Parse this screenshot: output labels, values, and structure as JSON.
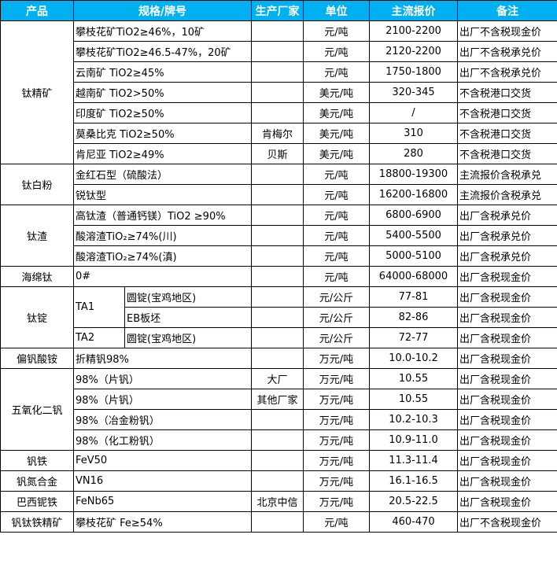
{
  "header": {
    "product": "产品",
    "spec": "规格/牌号",
    "maker": "生产厂家",
    "unit": "单位",
    "price": "主流报价",
    "note": "备注"
  },
  "colors": {
    "header_bg": "#00b0f0",
    "header_text": "#ffffff"
  },
  "groups": [
    {
      "product": "钛精矿",
      "rows": [
        {
          "spec": "攀枝花矿TiO2≥46%，10矿",
          "maker": "",
          "unit": "元/吨",
          "price": "2100-2200",
          "note": "出厂不含税现金价"
        },
        {
          "spec": "攀枝花矿TiO2≥46.5-47%，20矿",
          "maker": "",
          "unit": "元/吨",
          "price": "2120-2200",
          "note": "出厂不含税承兑价"
        },
        {
          "spec": "云南矿 TiO2≥45%",
          "maker": "",
          "unit": "元/吨",
          "price": "1750-1800",
          "note": "出厂不含税承兑价"
        },
        {
          "spec": "越南矿 TiO2>50%",
          "maker": "",
          "unit": "美元/吨",
          "price": "320-345",
          "note": "不含税港口交货"
        },
        {
          "spec": "印度矿 TiO2≥50%",
          "maker": "",
          "unit": "美元/吨",
          "price": "/",
          "note": "不含税港口交货"
        },
        {
          "spec": "莫桑比克 TiO2≥50%",
          "maker": "肯梅尔",
          "unit": "美元/吨",
          "price": "310",
          "note": "不含税港口交货"
        },
        {
          "spec": "肯尼亚 TiO2≥49%",
          "maker": "贝斯",
          "unit": "美元/吨",
          "price": "280",
          "note": "不含税港口交货"
        }
      ]
    },
    {
      "product": "钛白粉",
      "rows": [
        {
          "spec": "金红石型（硫酸法）",
          "maker": "",
          "unit": "元/吨",
          "price": "18800-19300",
          "note": "主流报价含税承兑"
        },
        {
          "spec": "锐钛型",
          "maker": "",
          "unit": "元/吨",
          "price": "16200-16800",
          "note": "主流报价含税承兑"
        }
      ]
    },
    {
      "product": "钛渣",
      "rows": [
        {
          "spec": "高钛渣（普通钙镁）TiO2 ≥90%",
          "maker": "",
          "unit": "元/吨",
          "price": "6800-6900",
          "note": "出厂含税承兑价"
        },
        {
          "spec": "酸溶渣TiO₂≥74%(川)",
          "maker": "",
          "unit": "元/吨",
          "price": "5400-5500",
          "note": "出厂含税承兑价"
        },
        {
          "spec": "酸溶渣TiO₂≥74%(滇)",
          "maker": "",
          "unit": "元/吨",
          "price": "5000-5100",
          "note": "出厂含税承兑价"
        }
      ]
    },
    {
      "product": "海绵钛",
      "rows": [
        {
          "spec": "0#",
          "maker": "",
          "unit": "元/吨",
          "price": "64000-68000",
          "note": "出厂含税现金价"
        }
      ]
    },
    {
      "product": "钛锭",
      "rows": [
        {
          "grade": "TA1",
          "form": "圆锭(宝鸡地区)",
          "maker": "",
          "unit": "元/公斤",
          "price": "77-81",
          "note": "出厂含税现金价"
        },
        {
          "form": "EB板坯",
          "maker": "",
          "unit": "元/公斤",
          "price": "82-86",
          "note": "出厂含税现金价"
        },
        {
          "grade": "TA2",
          "form": "圆锭(宝鸡地区)",
          "maker": "",
          "unit": "元/公斤",
          "price": "72-77",
          "note": "出厂含税现金价"
        }
      ]
    },
    {
      "product": "偏钒酸铵",
      "rows": [
        {
          "spec": "折精钒98%",
          "maker": "",
          "unit": "万元/吨",
          "price": "10.0-10.2",
          "note": "出厂含税现金价"
        }
      ]
    },
    {
      "product": "五氧化二钒",
      "rows": [
        {
          "spec": "98%（片钒）",
          "maker": "大厂",
          "unit": "万元/吨",
          "price": "10.55",
          "note": "出厂含税现金价"
        },
        {
          "spec": "98%（片钒）",
          "maker": "其他厂家",
          "unit": "万元/吨",
          "price": "10.55",
          "note": "出厂含税现金价"
        },
        {
          "spec": "98%（冶金粉钒）",
          "maker": "",
          "unit": "万元/吨",
          "price": "10.2-10.3",
          "note": "出厂含税现金价"
        },
        {
          "spec": "98%（化工粉钒）",
          "maker": "",
          "unit": "万元/吨",
          "price": "10.9-11.0",
          "note": "出厂含税现金价"
        }
      ]
    },
    {
      "product": "钒铁",
      "rows": [
        {
          "spec": "FeV50",
          "maker": "",
          "unit": "万元/吨",
          "price": "11.3-11.4",
          "note": "出厂含税现金价"
        }
      ]
    },
    {
      "product": "钒氮合金",
      "rows": [
        {
          "spec": "VN16",
          "maker": "",
          "unit": "万元/吨",
          "price": "16.1-16.5",
          "note": "出厂含税现金价"
        }
      ]
    },
    {
      "product": "巴西铌铁",
      "rows": [
        {
          "spec": "FeNb65",
          "maker": "北京中信",
          "unit": "万元/吨",
          "price": "20.5-22.5",
          "note": "出厂含税现金价"
        }
      ]
    },
    {
      "product": "钒钛铁精矿",
      "rows": [
        {
          "spec": "攀枝花矿 Fe≥54%",
          "maker": "",
          "unit": "元/吨",
          "price": "460-470",
          "note": "出厂不含税现金价"
        }
      ]
    }
  ]
}
